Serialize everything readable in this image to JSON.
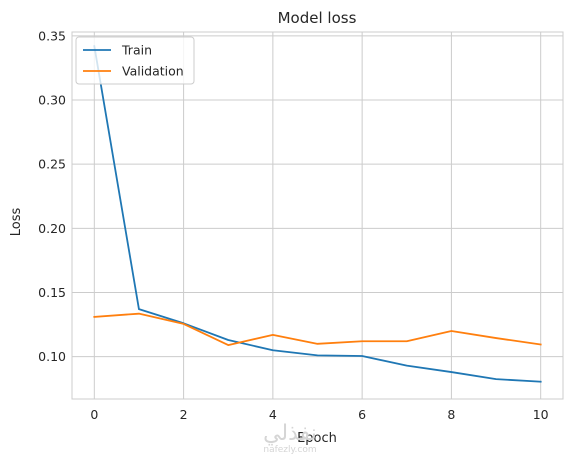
{
  "chart_data": {
    "type": "line",
    "title": "Model loss",
    "xlabel": "Epoch",
    "ylabel": "Loss",
    "x": [
      0,
      1,
      2,
      3,
      4,
      5,
      6,
      7,
      8,
      9,
      10
    ],
    "xlim": [
      -0.5,
      10.5
    ],
    "ylim": [
      0.067,
      0.353
    ],
    "xticks": [
      0,
      2,
      4,
      6,
      8,
      10
    ],
    "yticks": [
      0.1,
      0.15,
      0.2,
      0.25,
      0.3,
      0.35
    ],
    "ytick_labels": [
      "0.10",
      "0.15",
      "0.20",
      "0.25",
      "0.30",
      "0.35"
    ],
    "grid": true,
    "legend_position": "top-left",
    "series": [
      {
        "name": "Train",
        "color": "#1f77b4",
        "values": [
          0.342,
          0.137,
          0.126,
          0.113,
          0.105,
          0.101,
          0.1005,
          0.093,
          0.088,
          0.0825,
          0.0805
        ]
      },
      {
        "name": "Validation",
        "color": "#ff7f0e",
        "values": [
          0.131,
          0.1335,
          0.1255,
          0.109,
          0.117,
          0.11,
          0.112,
          0.112,
          0.12,
          0.1145,
          0.1095
        ]
      }
    ]
  },
  "watermark": {
    "text": "نفذلي",
    "subtext": "nafezly.com"
  }
}
